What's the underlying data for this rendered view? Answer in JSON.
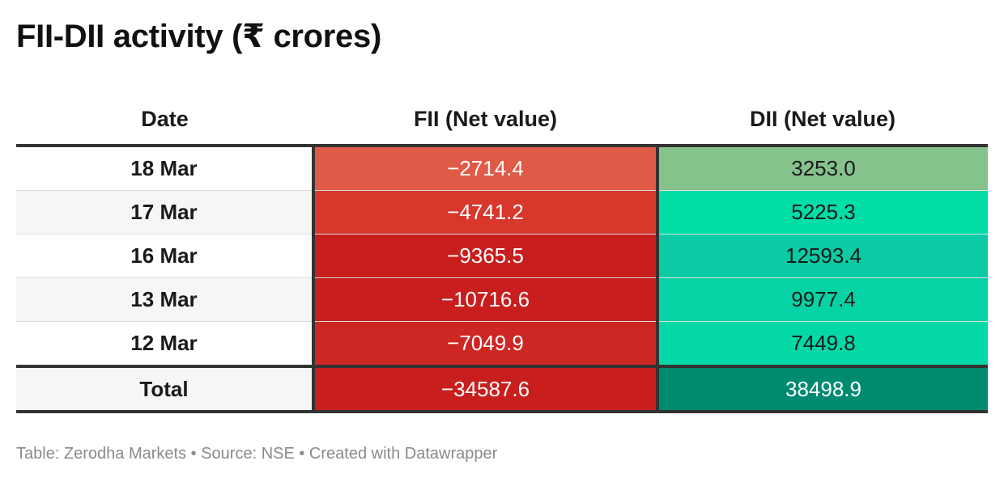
{
  "title": "FII-DII activity (₹ crores)",
  "chart_data": {
    "type": "table",
    "title": "FII-DII activity (₹ crores)",
    "columns": [
      "Date",
      "FII (Net value)",
      "DII (Net value)"
    ],
    "rows": [
      {
        "date": "18 Mar",
        "fii": "−2714.4",
        "dii": "3253.0",
        "fii_color": "#e05a48",
        "dii_color": "#86c28c"
      },
      {
        "date": "17 Mar",
        "fii": "−4741.2",
        "dii": "5225.3",
        "fii_color": "#d8372c",
        "dii_color": "#00dda6"
      },
      {
        "date": "16 Mar",
        "fii": "−9365.5",
        "dii": "12593.4",
        "fii_color": "#c81e1e",
        "dii_color": "#0acba4"
      },
      {
        "date": "13 Mar",
        "fii": "−10716.6",
        "dii": "9977.4",
        "fii_color": "#c81e1e",
        "dii_color": "#06d3a5"
      },
      {
        "date": "12 Mar",
        "fii": "−7049.9",
        "dii": "7449.8",
        "fii_color": "#ce2622",
        "dii_color": "#03d8a6"
      }
    ],
    "total": {
      "date": "Total",
      "fii": "−34587.6",
      "dii": "38498.9",
      "fii_color": "#c81e1e",
      "dii_color": "#008a70"
    }
  },
  "footer": "Table: Zerodha Markets • Source: NSE • Created with Datawrapper"
}
